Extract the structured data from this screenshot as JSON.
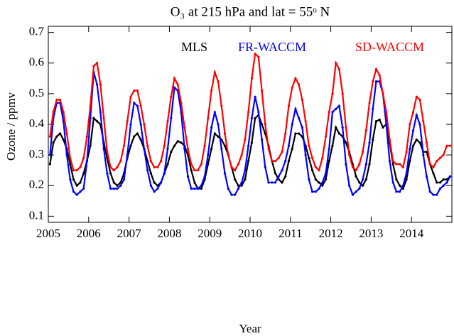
{
  "chart_data": {
    "type": "line",
    "title": "O₃ at 215 hPa and lat = 55ᵒ N",
    "xlabel": "Year",
    "ylabel": "Ozone / ppmv",
    "xlim": [
      2005,
      2015
    ],
    "xticks": [
      2005,
      2006,
      2007,
      2008,
      2009,
      2010,
      2011,
      2012,
      2013,
      2014
    ],
    "ylim": [
      0.08,
      0.72
    ],
    "yticks": [
      0.1,
      0.2,
      0.3,
      0.4,
      0.5,
      0.6,
      0.7
    ],
    "x": [
      2005.042,
      2005.125,
      2005.208,
      2005.292,
      2005.375,
      2005.458,
      2005.542,
      2005.625,
      2005.708,
      2005.792,
      2005.875,
      2005.958,
      2006.042,
      2006.125,
      2006.208,
      2006.292,
      2006.375,
      2006.458,
      2006.542,
      2006.625,
      2006.708,
      2006.792,
      2006.875,
      2006.958,
      2007.042,
      2007.125,
      2007.208,
      2007.292,
      2007.375,
      2007.458,
      2007.542,
      2007.625,
      2007.708,
      2007.792,
      2007.875,
      2007.958,
      2008.042,
      2008.125,
      2008.208,
      2008.292,
      2008.375,
      2008.458,
      2008.542,
      2008.625,
      2008.708,
      2008.792,
      2008.875,
      2008.958,
      2009.042,
      2009.125,
      2009.208,
      2009.292,
      2009.375,
      2009.458,
      2009.542,
      2009.625,
      2009.708,
      2009.792,
      2009.875,
      2009.958,
      2010.042,
      2010.125,
      2010.208,
      2010.292,
      2010.375,
      2010.458,
      2010.542,
      2010.625,
      2010.708,
      2010.792,
      2010.875,
      2010.958,
      2011.042,
      2011.125,
      2011.208,
      2011.292,
      2011.375,
      2011.458,
      2011.542,
      2011.625,
      2011.708,
      2011.792,
      2011.875,
      2011.958,
      2012.042,
      2012.125,
      2012.208,
      2012.292,
      2012.375,
      2012.458,
      2012.542,
      2012.625,
      2012.708,
      2012.792,
      2012.875,
      2012.958,
      2013.042,
      2013.125,
      2013.208,
      2013.292,
      2013.375,
      2013.458,
      2013.542,
      2013.625,
      2013.708,
      2013.792,
      2013.875,
      2013.958,
      2014.042,
      2014.125,
      2014.208,
      2014.292,
      2014.375,
      2014.458,
      2014.542,
      2014.625,
      2014.708,
      2014.792,
      2014.875,
      2014.958
    ],
    "series": [
      {
        "name": "MLS",
        "color": "#000000",
        "values": [
          0.27,
          0.34,
          0.36,
          0.37,
          0.35,
          0.32,
          0.27,
          0.22,
          0.2,
          0.21,
          0.24,
          0.28,
          0.33,
          0.42,
          0.41,
          0.4,
          0.34,
          0.29,
          0.24,
          0.21,
          0.2,
          0.21,
          0.24,
          0.29,
          0.33,
          0.36,
          0.37,
          0.35,
          0.32,
          0.28,
          0.24,
          0.21,
          0.2,
          0.21,
          0.24,
          0.27,
          0.31,
          0.33,
          0.345,
          0.34,
          0.33,
          0.3,
          0.25,
          0.21,
          0.19,
          0.19,
          0.22,
          0.27,
          0.32,
          0.37,
          0.36,
          0.35,
          0.33,
          0.3,
          0.26,
          0.22,
          0.2,
          0.2,
          0.22,
          0.28,
          0.34,
          0.42,
          0.43,
          0.4,
          0.37,
          0.33,
          0.28,
          0.24,
          0.22,
          0.21,
          0.23,
          0.28,
          0.32,
          0.37,
          0.37,
          0.36,
          0.33,
          0.29,
          0.25,
          0.22,
          0.21,
          0.2,
          0.22,
          0.28,
          0.33,
          0.39,
          0.37,
          0.36,
          0.34,
          0.31,
          0.27,
          0.23,
          0.21,
          0.2,
          0.22,
          0.27,
          0.35,
          0.41,
          0.415,
          0.39,
          0.4,
          0.34,
          0.27,
          0.22,
          0.2,
          0.19,
          0.22,
          0.28,
          0.33,
          0.35,
          0.34,
          0.31,
          0.31,
          0.27,
          0.24,
          0.21,
          0.21,
          0.22,
          0.22,
          0.23
        ]
      },
      {
        "name": "FR-WACCM",
        "color": "#0000ff",
        "values": [
          0.3,
          0.42,
          0.47,
          0.47,
          0.41,
          0.3,
          0.22,
          0.18,
          0.17,
          0.18,
          0.19,
          0.28,
          0.42,
          0.57,
          0.53,
          0.44,
          0.32,
          0.24,
          0.19,
          0.19,
          0.19,
          0.2,
          0.22,
          0.3,
          0.4,
          0.47,
          0.46,
          0.4,
          0.32,
          0.25,
          0.2,
          0.18,
          0.19,
          0.21,
          0.24,
          0.32,
          0.42,
          0.52,
          0.51,
          0.44,
          0.32,
          0.23,
          0.19,
          0.19,
          0.19,
          0.2,
          0.23,
          0.3,
          0.39,
          0.44,
          0.4,
          0.32,
          0.24,
          0.19,
          0.17,
          0.17,
          0.19,
          0.21,
          0.25,
          0.33,
          0.42,
          0.49,
          0.44,
          0.35,
          0.26,
          0.21,
          0.21,
          0.21,
          0.23,
          0.25,
          0.28,
          0.33,
          0.4,
          0.45,
          0.42,
          0.39,
          0.3,
          0.22,
          0.18,
          0.18,
          0.19,
          0.21,
          0.24,
          0.32,
          0.44,
          0.45,
          0.46,
          0.39,
          0.27,
          0.2,
          0.17,
          0.18,
          0.19,
          0.22,
          0.27,
          0.34,
          0.45,
          0.54,
          0.54,
          0.5,
          0.4,
          0.28,
          0.21,
          0.18,
          0.18,
          0.2,
          0.24,
          0.32,
          0.38,
          0.43,
          0.4,
          0.3,
          0.23,
          0.18,
          0.17,
          0.17,
          0.19,
          0.2,
          0.21,
          0.23
        ]
      },
      {
        "name": "SD-WACCM",
        "color": "#ff0000",
        "values": [
          0.36,
          0.44,
          0.48,
          0.48,
          0.44,
          0.37,
          0.29,
          0.25,
          0.25,
          0.26,
          0.29,
          0.36,
          0.46,
          0.59,
          0.6,
          0.53,
          0.42,
          0.31,
          0.26,
          0.25,
          0.26,
          0.28,
          0.33,
          0.41,
          0.49,
          0.51,
          0.51,
          0.46,
          0.4,
          0.33,
          0.28,
          0.26,
          0.26,
          0.28,
          0.33,
          0.41,
          0.49,
          0.55,
          0.53,
          0.47,
          0.39,
          0.32,
          0.27,
          0.25,
          0.25,
          0.27,
          0.33,
          0.42,
          0.51,
          0.57,
          0.54,
          0.46,
          0.37,
          0.3,
          0.26,
          0.25,
          0.27,
          0.3,
          0.35,
          0.44,
          0.55,
          0.63,
          0.62,
          0.51,
          0.4,
          0.32,
          0.28,
          0.28,
          0.29,
          0.31,
          0.37,
          0.46,
          0.52,
          0.55,
          0.53,
          0.48,
          0.41,
          0.33,
          0.29,
          0.26,
          0.25,
          0.29,
          0.36,
          0.44,
          0.5,
          0.6,
          0.58,
          0.5,
          0.39,
          0.3,
          0.26,
          0.25,
          0.27,
          0.31,
          0.38,
          0.47,
          0.54,
          0.58,
          0.56,
          0.5,
          0.44,
          0.35,
          0.28,
          0.27,
          0.27,
          0.26,
          0.31,
          0.4,
          0.44,
          0.49,
          0.48,
          0.41,
          0.34,
          0.27,
          0.26,
          0.28,
          0.29,
          0.3,
          0.33,
          0.33
        ]
      }
    ]
  }
}
